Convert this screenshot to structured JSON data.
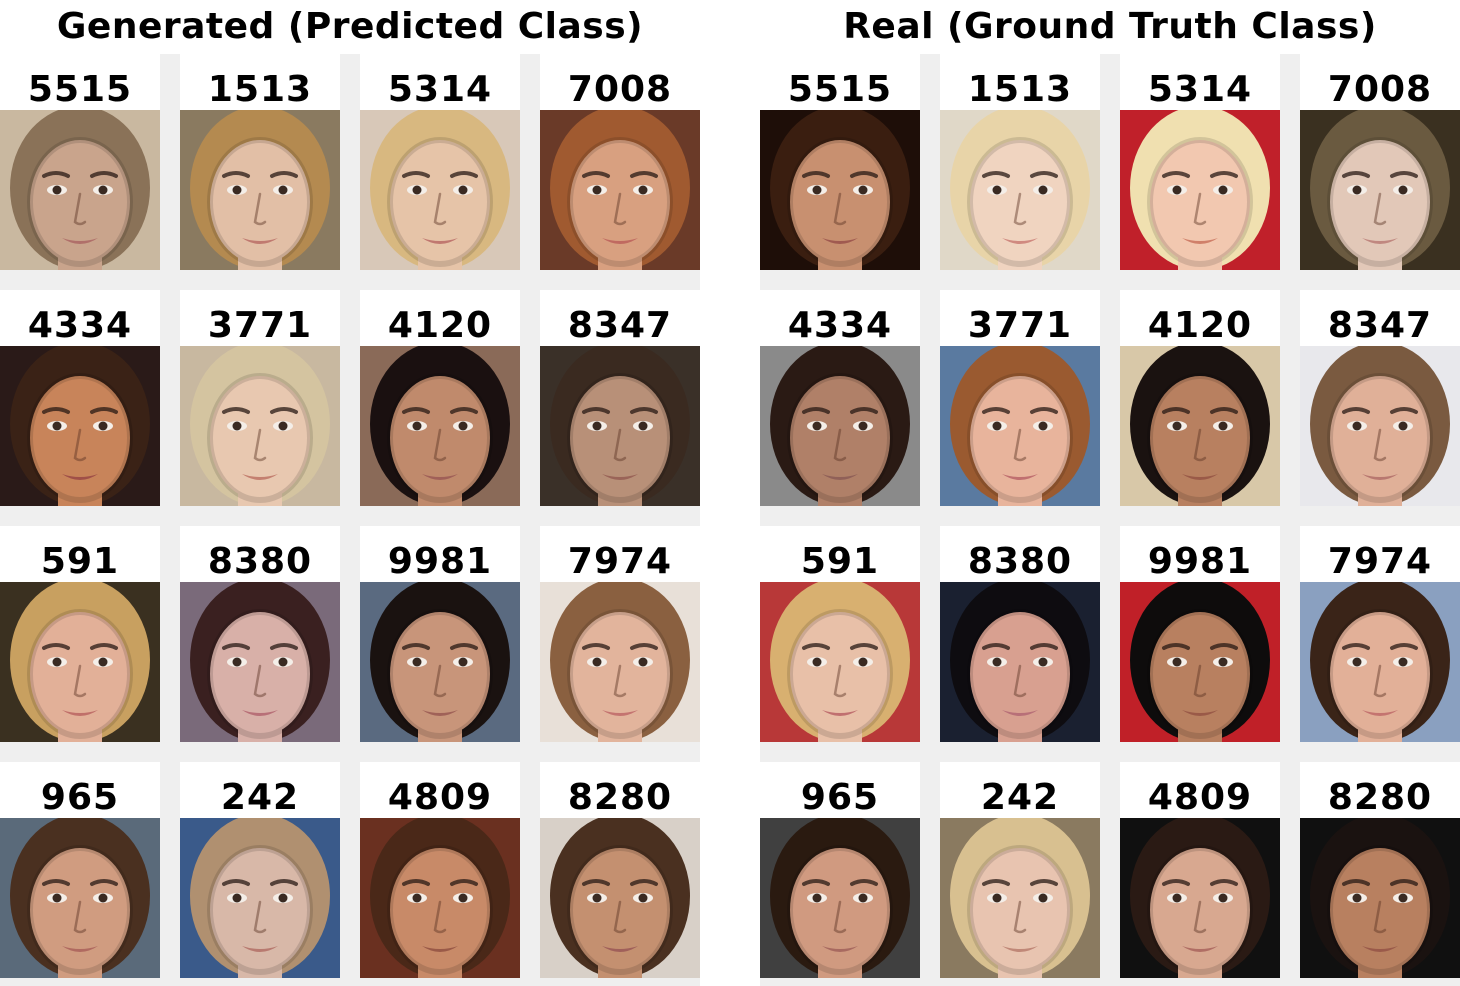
{
  "panels": [
    {
      "title": "Generated (Predicted Class)",
      "labels": [
        "5515",
        "1513",
        "5314",
        "7008",
        "4334",
        "3771",
        "4120",
        "8347",
        "591",
        "8380",
        "9981",
        "7974",
        "965",
        "242",
        "4809",
        "8280"
      ],
      "faces": [
        {
          "bg": "#c9b8a0",
          "hair": "#8a7258",
          "skin": "#c9a48c",
          "lip": "#b0706a"
        },
        {
          "bg": "#8a7a60",
          "hair": "#b48a50",
          "skin": "#e2bfa6",
          "lip": "#c07a70"
        },
        {
          "bg": "#d8c8b8",
          "hair": "#d8b880",
          "skin": "#e6c4a8",
          "lip": "#c07870"
        },
        {
          "bg": "#6a3a28",
          "hair": "#a05a30",
          "skin": "#d8a080",
          "lip": "#c06a60"
        },
        {
          "bg": "#2a1a18",
          "hair": "#3a2216",
          "skin": "#c8845a",
          "lip": "#a05048"
        },
        {
          "bg": "#c8b8a0",
          "hair": "#d4c4a0",
          "skin": "#e8c8b0",
          "lip": "#c48070"
        },
        {
          "bg": "#8a6a58",
          "hair": "#1a1010",
          "skin": "#c08a6c",
          "lip": "#a06058"
        },
        {
          "bg": "#3a3028",
          "hair": "#3a2a20",
          "skin": "#b89078",
          "lip": "#9a6458"
        },
        {
          "bg": "#3a3020",
          "hair": "#c8a060",
          "skin": "#e2b098",
          "lip": "#c0706a"
        },
        {
          "bg": "#7a6a7a",
          "hair": "#3a2020",
          "skin": "#d8b0a8",
          "lip": "#b87078"
        },
        {
          "bg": "#5a6a80",
          "hair": "#1a1210",
          "skin": "#c8957a",
          "lip": "#a06258"
        },
        {
          "bg": "#e8e0d8",
          "hair": "#8a6040",
          "skin": "#e2b49c",
          "lip": "#c47470"
        },
        {
          "bg": "#5a6a7a",
          "hair": "#4a3020",
          "skin": "#d09c80",
          "lip": "#b06a60"
        },
        {
          "bg": "#3a5a8a",
          "hair": "#b09070",
          "skin": "#d8b8a8",
          "lip": "#b87a70"
        },
        {
          "bg": "#6a3020",
          "hair": "#4a2818",
          "skin": "#c88a68",
          "lip": "#9a5a48"
        },
        {
          "bg": "#d8d0c8",
          "hair": "#4a3020",
          "skin": "#c49070",
          "lip": "#a0605a"
        }
      ]
    },
    {
      "title": "Real (Ground Truth Class)",
      "labels": [
        "5515",
        "1513",
        "5314",
        "7008",
        "4334",
        "3771",
        "4120",
        "8347",
        "591",
        "8380",
        "9981",
        "7974",
        "965",
        "242",
        "4809",
        "8280"
      ],
      "faces": [
        {
          "bg": "#1e0e08",
          "hair": "#3a1e10",
          "skin": "#c89070",
          "lip": "#a05a50"
        },
        {
          "bg": "#e0d8c8",
          "hair": "#e8d4a8",
          "skin": "#f0d4c0",
          "lip": "#d08a80"
        },
        {
          "bg": "#c0202a",
          "hair": "#f0e0b0",
          "skin": "#f2c8b0",
          "lip": "#d0806a"
        },
        {
          "bg": "#3a3020",
          "hair": "#6a5a40",
          "skin": "#e2c8b8",
          "lip": "#c08880"
        },
        {
          "bg": "#8a8a8a",
          "hair": "#2a1a14",
          "skin": "#b08068",
          "lip": "#906058"
        },
        {
          "bg": "#5a7aa0",
          "hair": "#9a5a30",
          "skin": "#e8b49c",
          "lip": "#c07070"
        },
        {
          "bg": "#d8c8a8",
          "hair": "#1a1210",
          "skin": "#b88060",
          "lip": "#9a5a48"
        },
        {
          "bg": "#e8e8ec",
          "hair": "#7a5a40",
          "skin": "#e0b098",
          "lip": "#b87870"
        },
        {
          "bg": "#b83838",
          "hair": "#d8b070",
          "skin": "#e8c0a8",
          "lip": "#c07070"
        },
        {
          "bg": "#1a2030",
          "hair": "#0e0c10",
          "skin": "#d8a090",
          "lip": "#b87078"
        },
        {
          "bg": "#c02028",
          "hair": "#0e0c0c",
          "skin": "#b88060",
          "lip": "#9a5a48"
        },
        {
          "bg": "#8aa0c0",
          "hair": "#3a2418",
          "skin": "#e2b098",
          "lip": "#c47470"
        },
        {
          "bg": "#404040",
          "hair": "#2a1a10",
          "skin": "#d09a80",
          "lip": "#a86a60"
        },
        {
          "bg": "#8a7a60",
          "hair": "#d8c090",
          "skin": "#e8c4b0",
          "lip": "#c08878"
        },
        {
          "bg": "#101010",
          "hair": "#2a1a14",
          "skin": "#d8a890",
          "lip": "#b06e64"
        },
        {
          "bg": "#101010",
          "hair": "#1a1210",
          "skin": "#b88060",
          "lip": "#9a5a4a"
        }
      ]
    }
  ]
}
